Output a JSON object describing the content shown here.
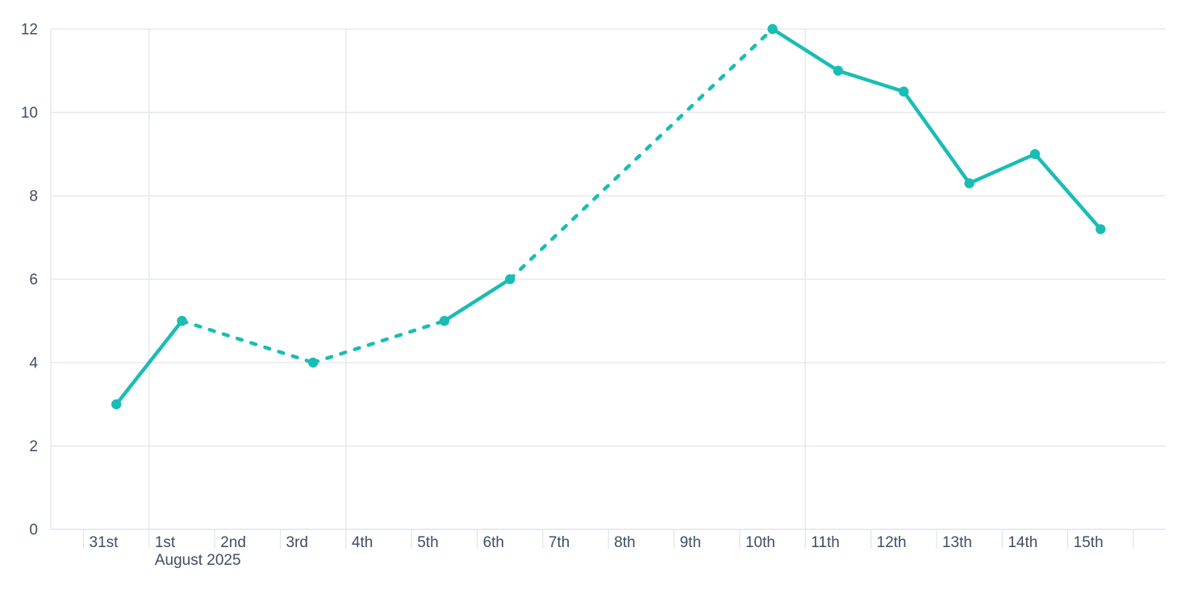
{
  "chart": {
    "colors": {
      "series": "#19bdb3",
      "grid": "#e5e8f0",
      "axis": "#dfe3ed",
      "label": "#3f4d66",
      "background": "#ffffff"
    }
  },
  "chart_data": {
    "type": "line",
    "title": "",
    "xlabel": "",
    "ylabel": "",
    "legend": false,
    "grid": {
      "horizontal": true,
      "vertical_at_week_and_month_starts": true
    },
    "x_axis": {
      "type": "datetime",
      "day_tick_labels": [
        "31st",
        "1st",
        "2nd",
        "3rd",
        "4th",
        "5th",
        "6th",
        "7th",
        "8th",
        "9th",
        "10th",
        "11th",
        "12th",
        "13th",
        "14th",
        "15th"
      ],
      "month_label": "August 2025",
      "month_label_under_day": "1st",
      "vertical_gridlines_at_days": [
        "1st",
        "4th",
        "11th"
      ],
      "trailing_unlabeled_tick": true
    },
    "y_axis": {
      "min": 0,
      "max": 12,
      "tick_interval": 2,
      "tick_labels": [
        "0",
        "2",
        "4",
        "6",
        "8",
        "10",
        "12"
      ]
    },
    "series": [
      {
        "name": "daily-values",
        "marker": "circle",
        "points": [
          {
            "date": "31st",
            "value": 3
          },
          {
            "date": "1st",
            "value": 5
          },
          {
            "date": "3rd",
            "value": 4
          },
          {
            "date": "5th",
            "value": 5
          },
          {
            "date": "6th",
            "value": 6
          },
          {
            "date": "10th",
            "value": 12
          },
          {
            "date": "11th",
            "value": 11
          },
          {
            "date": "12th",
            "value": 10.5
          },
          {
            "date": "13th",
            "value": 8.3
          },
          {
            "date": "14th",
            "value": 9
          },
          {
            "date": "15th",
            "value": 7.2
          }
        ],
        "dashed_segments": [
          [
            "1st",
            "3rd"
          ],
          [
            "3rd",
            "5th"
          ],
          [
            "6th",
            "10th"
          ]
        ]
      }
    ]
  }
}
